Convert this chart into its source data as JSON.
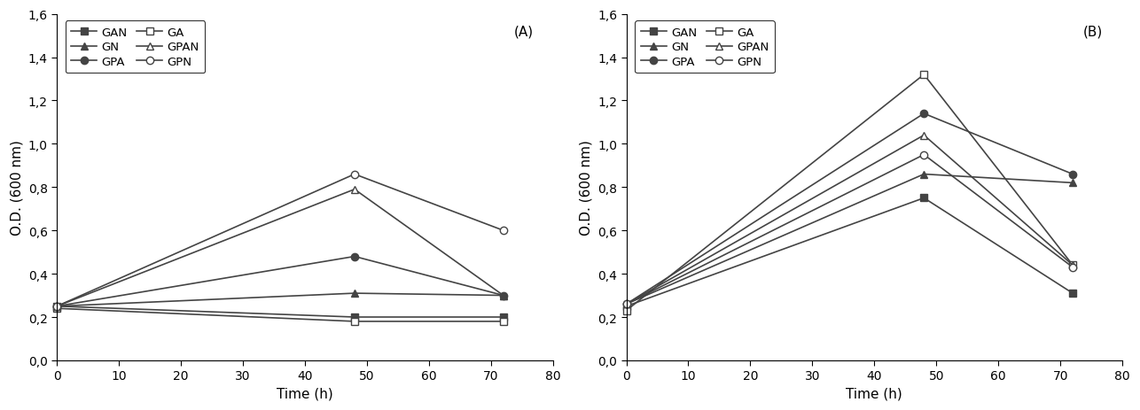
{
  "panel_A": {
    "title": "(A)",
    "x": [
      0,
      48,
      72
    ],
    "series": [
      {
        "label": "GAN",
        "marker": "s",
        "filled": true,
        "values": [
          0.25,
          0.2,
          0.2
        ]
      },
      {
        "label": "GA",
        "marker": "s",
        "filled": false,
        "values": [
          0.24,
          0.18,
          0.18
        ]
      },
      {
        "label": "GN",
        "marker": "^",
        "filled": true,
        "values": [
          0.25,
          0.31,
          0.3
        ]
      },
      {
        "label": "GPAN",
        "marker": "^",
        "filled": false,
        "values": [
          0.25,
          0.79,
          0.3
        ]
      },
      {
        "label": "GPA",
        "marker": "o",
        "filled": true,
        "values": [
          0.25,
          0.48,
          0.3
        ]
      },
      {
        "label": "GPN",
        "marker": "o",
        "filled": false,
        "values": [
          0.25,
          0.86,
          0.6
        ]
      }
    ],
    "ylabel": "O.D. (600 nm)",
    "xlabel": "Time (h)",
    "ylim": [
      0.0,
      1.6
    ],
    "yticks": [
      0.0,
      0.2,
      0.4,
      0.6,
      0.8,
      1.0,
      1.2,
      1.4,
      1.6
    ],
    "ytick_labels": [
      "0,0",
      "0,2",
      "0,4",
      "0,6",
      "0,8",
      "1,0",
      "1,2",
      "1,4",
      "1,6"
    ],
    "xlim": [
      0,
      80
    ],
    "xticks": [
      0,
      10,
      20,
      30,
      40,
      50,
      60,
      70,
      80
    ]
  },
  "panel_B": {
    "title": "(B)",
    "x": [
      0,
      48,
      72
    ],
    "series": [
      {
        "label": "GAN",
        "marker": "s",
        "filled": true,
        "values": [
          0.25,
          0.75,
          0.31
        ]
      },
      {
        "label": "GA",
        "marker": "s",
        "filled": false,
        "values": [
          0.23,
          1.32,
          0.44
        ]
      },
      {
        "label": "GN",
        "marker": "^",
        "filled": true,
        "values": [
          0.26,
          0.86,
          0.82
        ]
      },
      {
        "label": "GPAN",
        "marker": "^",
        "filled": false,
        "values": [
          0.26,
          1.04,
          0.44
        ]
      },
      {
        "label": "GPA",
        "marker": "o",
        "filled": true,
        "values": [
          0.26,
          1.14,
          0.86
        ]
      },
      {
        "label": "GPN",
        "marker": "o",
        "filled": false,
        "values": [
          0.26,
          0.95,
          0.43
        ]
      }
    ],
    "ylabel": "O.D. (600 nm)",
    "xlabel": "Time (h)",
    "ylim": [
      0.0,
      1.6
    ],
    "yticks": [
      0.0,
      0.2,
      0.4,
      0.6,
      0.8,
      1.0,
      1.2,
      1.4,
      1.6
    ],
    "ytick_labels": [
      "0,0",
      "0,2",
      "0,4",
      "0,6",
      "0,8",
      "1,0",
      "1,2",
      "1,4",
      "1,6"
    ],
    "xlim": [
      0,
      80
    ],
    "xticks": [
      0,
      10,
      20,
      30,
      40,
      50,
      60,
      70,
      80
    ]
  },
  "line_color": "#444444",
  "marker_size": 6,
  "linewidth": 1.2,
  "legend_fontsize": 9.5,
  "axis_fontsize": 11,
  "tick_fontsize": 10
}
